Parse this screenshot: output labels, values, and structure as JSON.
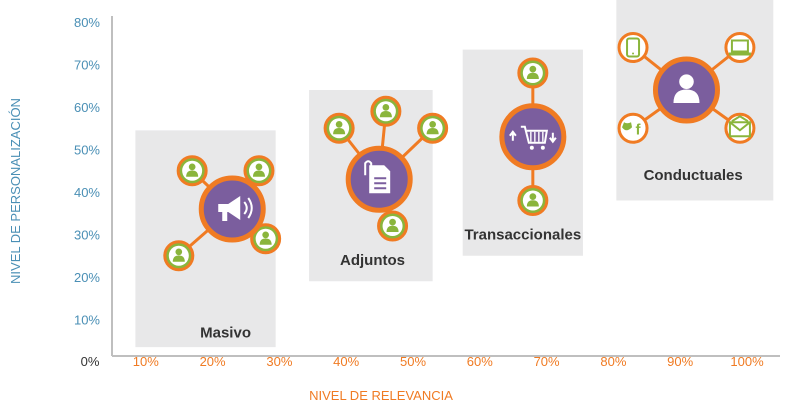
{
  "chart_data": {
    "type": "scatter",
    "title": "",
    "xlabel": "NIVEL DE RELEVANCIA",
    "ylabel": "NIVEL DE PERSONALIZACIÓN",
    "xlim": [
      0,
      100
    ],
    "ylim": [
      0,
      80
    ],
    "x_ticks": [
      "0%",
      "10%",
      "20%",
      "30%",
      "40%",
      "50%",
      "60%",
      "70%",
      "80%",
      "90%",
      "100%"
    ],
    "y_ticks": [
      "10%",
      "20%",
      "30%",
      "40%",
      "50%",
      "60%",
      "70%",
      "80%"
    ],
    "grid": false,
    "colors": {
      "box": "#e8e8e9",
      "hub_fill": "#7b5e9e",
      "ring": "#f07b23",
      "leaf_fill": "#8ab53c",
      "leaf_person_green": "#8ab53c",
      "axis_line": "#bfbfbf"
    },
    "groups": [
      {
        "label": "Masivo",
        "x_range": [
          3.5,
          24.5
        ],
        "y_range": [
          3.5,
          54.5
        ],
        "hub": {
          "x": 18,
          "y": 36,
          "icon": "megaphone-icon"
        },
        "leaves": [
          {
            "x": 12,
            "y": 45,
            "icon": "person-icon"
          },
          {
            "x": 22,
            "y": 45,
            "icon": "person-icon"
          },
          {
            "x": 10,
            "y": 25,
            "icon": "person-icon"
          },
          {
            "x": 23,
            "y": 29,
            "icon": "person-icon"
          }
        ]
      },
      {
        "label": "Adjuntos",
        "x_range": [
          29.5,
          48
        ],
        "y_range": [
          19,
          64
        ],
        "hub": {
          "x": 40,
          "y": 43,
          "icon": "document-icon"
        },
        "leaves": [
          {
            "x": 34,
            "y": 55,
            "icon": "person-icon"
          },
          {
            "x": 41,
            "y": 59,
            "icon": "person-icon"
          },
          {
            "x": 48,
            "y": 55,
            "icon": "person-icon"
          },
          {
            "x": 42,
            "y": 32,
            "icon": "person-icon"
          }
        ]
      },
      {
        "label": "Transaccionales",
        "x_range": [
          52.5,
          70.5
        ],
        "y_range": [
          25,
          73.5
        ],
        "hub": {
          "x": 63,
          "y": 53,
          "icon": "cart-icon"
        },
        "leaves": [
          {
            "x": 63,
            "y": 68,
            "icon": "person-icon"
          },
          {
            "x": 63,
            "y": 38,
            "icon": "person-icon"
          }
        ]
      },
      {
        "label": "Conductuales",
        "x_range": [
          75.5,
          99
        ],
        "y_range": [
          38,
          86.5
        ],
        "hub": {
          "x": 86,
          "y": 64,
          "icon": "user-icon"
        },
        "leaves": [
          {
            "x": 78,
            "y": 74,
            "icon": "tablet-icon"
          },
          {
            "x": 94,
            "y": 74,
            "icon": "laptop-icon"
          },
          {
            "x": 78,
            "y": 55,
            "icon": "social-icon"
          },
          {
            "x": 94,
            "y": 55,
            "icon": "email-icon"
          }
        ]
      }
    ]
  }
}
